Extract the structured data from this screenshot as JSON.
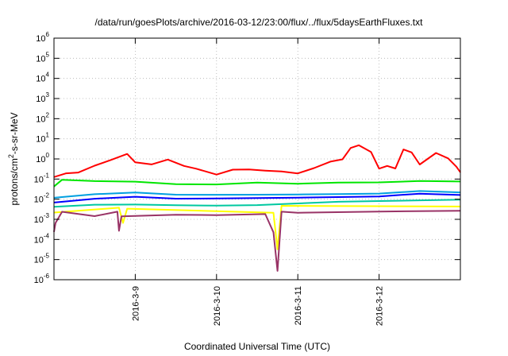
{
  "chart_data": {
    "type": "line",
    "title": "/data/run/goesPlots/archive/2016-03-12/23:00/flux/../flux/5daysEarthFluxes.txt",
    "xlabel": "Coordinated Universal Time (UTC)",
    "ylabel": {
      "prefix": "protons/cm",
      "sup": "2",
      "suffix": "-s-sr-MeV"
    },
    "x_ticks": [
      "2016-3-9",
      "2016-3-10",
      "2016-3-11",
      "2016-3-12"
    ],
    "y_scale": "log",
    "ylim": [
      1e-06,
      1000000.0
    ],
    "y_ticks": [
      {
        "base": "10",
        "exp": "-6"
      },
      {
        "base": "10",
        "exp": "-5"
      },
      {
        "base": "10",
        "exp": "-4"
      },
      {
        "base": "10",
        "exp": "-3"
      },
      {
        "base": "10",
        "exp": "-2"
      },
      {
        "base": "10",
        "exp": "-1"
      },
      {
        "base": "10",
        "exp": "0"
      },
      {
        "base": "10",
        "exp": "1"
      },
      {
        "base": "10",
        "exp": "2"
      },
      {
        "base": "10",
        "exp": "3"
      },
      {
        "base": "10",
        "exp": "4"
      },
      {
        "base": "10",
        "exp": "5"
      },
      {
        "base": "10",
        "exp": "6"
      }
    ],
    "grid": true,
    "x_days": [
      0,
      5
    ],
    "series_points": [
      {
        "color": "#ff0000",
        "points": [
          [
            0,
            -0.9
          ],
          [
            0.15,
            -0.6
          ],
          [
            0.3,
            -0.5
          ],
          [
            0.5,
            -0.3
          ],
          [
            0.7,
            -0.2
          ],
          [
            0.9,
            0.1
          ],
          [
            1.0,
            -0.1
          ],
          [
            1.2,
            -0.4
          ],
          [
            1.4,
            -0.2
          ],
          [
            1.6,
            -0.35
          ],
          [
            1.75,
            -0.6
          ],
          [
            2.0,
            -0.65
          ],
          [
            2.2,
            -0.6
          ],
          [
            2.4,
            -0.7
          ],
          [
            2.6,
            -0.65
          ],
          [
            2.8,
            -0.5
          ],
          [
            3.0,
            -0.55
          ],
          [
            3.2,
            -0.45
          ],
          [
            3.4,
            -0.3
          ],
          [
            3.55,
            -0.1
          ],
          [
            3.65,
            0.7
          ],
          [
            3.75,
            0.5
          ],
          [
            3.9,
            0.2
          ],
          [
            4.0,
            -0.3
          ],
          [
            4.1,
            -0.5
          ],
          [
            4.2,
            -0.4
          ],
          [
            4.3,
            0.5
          ],
          [
            4.4,
            0.2
          ],
          [
            4.5,
            -0.1
          ],
          [
            4.7,
            0.4
          ],
          [
            4.85,
            0.2
          ],
          [
            4.95,
            -0.5
          ],
          [
            5.0,
            -0.5
          ]
        ]
      },
      {
        "color": "#00e600",
        "points": [
          [
            0,
            -1.3
          ],
          [
            0.1,
            -1.0
          ],
          [
            0.5,
            -1.0
          ],
          [
            1.0,
            -1.0
          ],
          [
            1.5,
            -1.1
          ],
          [
            2.0,
            -1.1
          ],
          [
            2.5,
            -1.0
          ],
          [
            3.0,
            -1.05
          ],
          [
            3.5,
            -1.0
          ],
          [
            4.0,
            -1.0
          ],
          [
            4.5,
            -0.95
          ],
          [
            5.0,
            -1.0
          ]
        ]
      },
      {
        "color": "#00a0e0",
        "points": [
          [
            0,
            -1.8
          ],
          [
            0.5,
            -1.6
          ],
          [
            1.0,
            -1.5
          ],
          [
            1.5,
            -1.6
          ],
          [
            2.0,
            -1.6
          ],
          [
            2.5,
            -1.6
          ],
          [
            3.0,
            -1.6
          ],
          [
            3.5,
            -1.6
          ],
          [
            4.0,
            -1.6
          ],
          [
            4.5,
            -1.5
          ],
          [
            5.0,
            -1.6
          ]
        ]
      },
      {
        "color": "#0000ff",
        "points": [
          [
            0,
            -2.0
          ],
          [
            0.5,
            -1.8
          ],
          [
            1.0,
            -1.7
          ],
          [
            1.5,
            -1.8
          ],
          [
            2.0,
            -1.8
          ],
          [
            2.5,
            -1.8
          ],
          [
            3.0,
            -1.8
          ],
          [
            3.5,
            -1.8
          ],
          [
            4.0,
            -1.8
          ],
          [
            4.5,
            -1.7
          ],
          [
            5.0,
            -1.8
          ]
        ]
      },
      {
        "color": "#00c8a0",
        "points": [
          [
            0,
            -2.2
          ],
          [
            0.5,
            -2.1
          ],
          [
            1.0,
            -2.1
          ],
          [
            1.5,
            -2.15
          ],
          [
            2.0,
            -2.2
          ],
          [
            2.5,
            -2.2
          ],
          [
            3.0,
            -2.15
          ],
          [
            3.5,
            -2.1
          ],
          [
            4.0,
            -2.1
          ],
          [
            4.5,
            -2.1
          ],
          [
            5.0,
            -2.1
          ]
        ]
      },
      {
        "color": "#ffff00",
        "points": [
          [
            0,
            -2.5
          ],
          [
            0.8,
            -2.5
          ],
          [
            0.85,
            -3.0
          ],
          [
            0.9,
            -2.5
          ],
          [
            2.7,
            -2.5
          ],
          [
            2.75,
            -4.5
          ],
          [
            2.8,
            -2.5
          ],
          [
            5.0,
            -2.5
          ]
        ]
      },
      {
        "color": "#993366",
        "points": [
          [
            0,
            -3.5
          ],
          [
            0.02,
            -3.0
          ],
          [
            0.1,
            -2.8
          ],
          [
            0.5,
            -2.75
          ],
          [
            0.78,
            -2.8
          ],
          [
            0.8,
            -3.7
          ],
          [
            0.83,
            -2.8
          ],
          [
            1.5,
            -2.75
          ],
          [
            2.0,
            -2.8
          ],
          [
            2.6,
            -2.8
          ],
          [
            2.7,
            -3.5
          ],
          [
            2.75,
            -5.5
          ],
          [
            2.8,
            -2.8
          ],
          [
            3.0,
            -2.75
          ],
          [
            4.0,
            -2.75
          ],
          [
            5.0,
            -2.75
          ]
        ]
      }
    ]
  }
}
